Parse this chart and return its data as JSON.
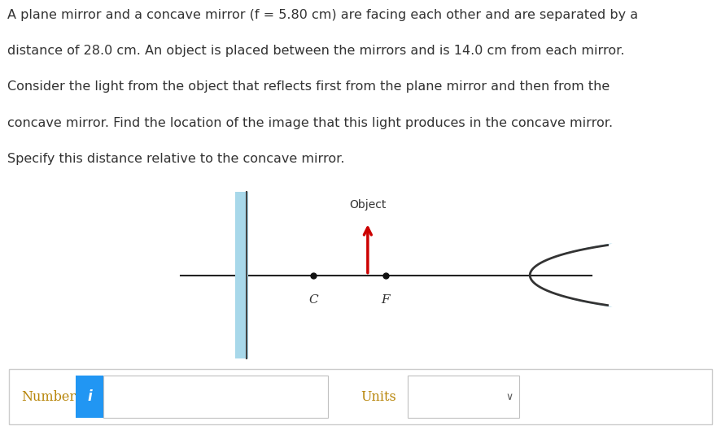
{
  "text_line1": "A plane mirror and a concave mirror (f = 5.80 cm) are facing each other and are separated by a",
  "text_line2": "distance of 28.0 cm. An object is placed between the mirrors and is 14.0 cm from each mirror.",
  "text_line3": "Consider the light from the object that reflects first from the plane mirror and then from the",
  "text_line4": "concave mirror. Find the location of the image that this light produces in the concave mirror.",
  "text_line5": "Specify this distance relative to the concave mirror.",
  "text_color": "#333333",
  "text_fontsize": 11.5,
  "bg_color": "#ffffff",
  "plane_mirror_color": "#a8d8ea",
  "concave_mirror_color": "#a8d8ea",
  "axis_color": "#222222",
  "object_arrow_color": "#cc0000",
  "dot_color": "#111111",
  "number_label": "Number",
  "units_label": "Units",
  "info_icon_color": "#2196F3",
  "label_C": "C",
  "label_F": "F",
  "label_object": "Object"
}
